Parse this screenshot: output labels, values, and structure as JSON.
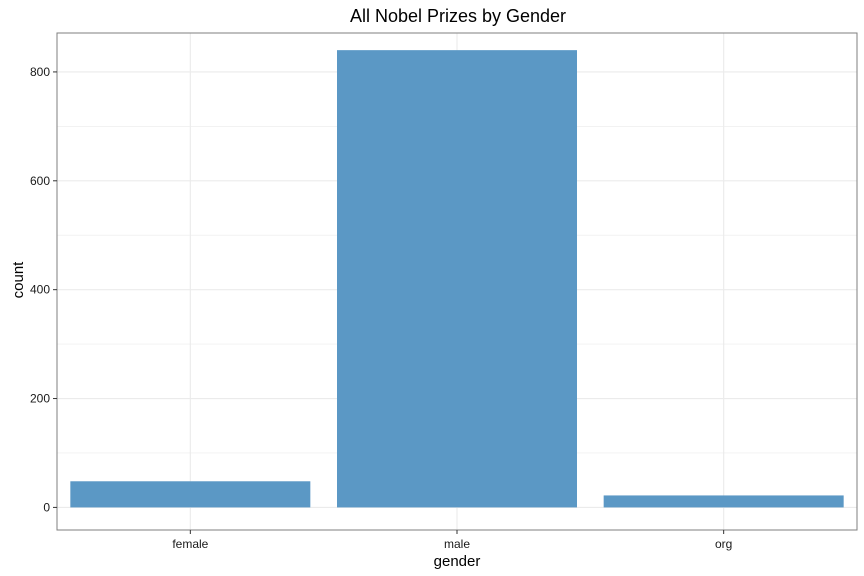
{
  "chart_data": {
    "type": "bar",
    "title": "All Nobel Prizes by Gender",
    "xlabel": "gender",
    "ylabel": "count",
    "categories": [
      "female",
      "male",
      "org"
    ],
    "values": [
      48,
      840,
      22
    ],
    "ylim": [
      -41.5,
      871.5
    ],
    "yticks": [
      0,
      200,
      400,
      600,
      800
    ],
    "yticks_minor": [
      100,
      300,
      500,
      700
    ],
    "grid": true,
    "legend": "none",
    "colors": {
      "bar": "#5b98c5",
      "grid": "#ebebeb",
      "panel_border": "#7f7f7f",
      "tick": "#333333"
    }
  }
}
